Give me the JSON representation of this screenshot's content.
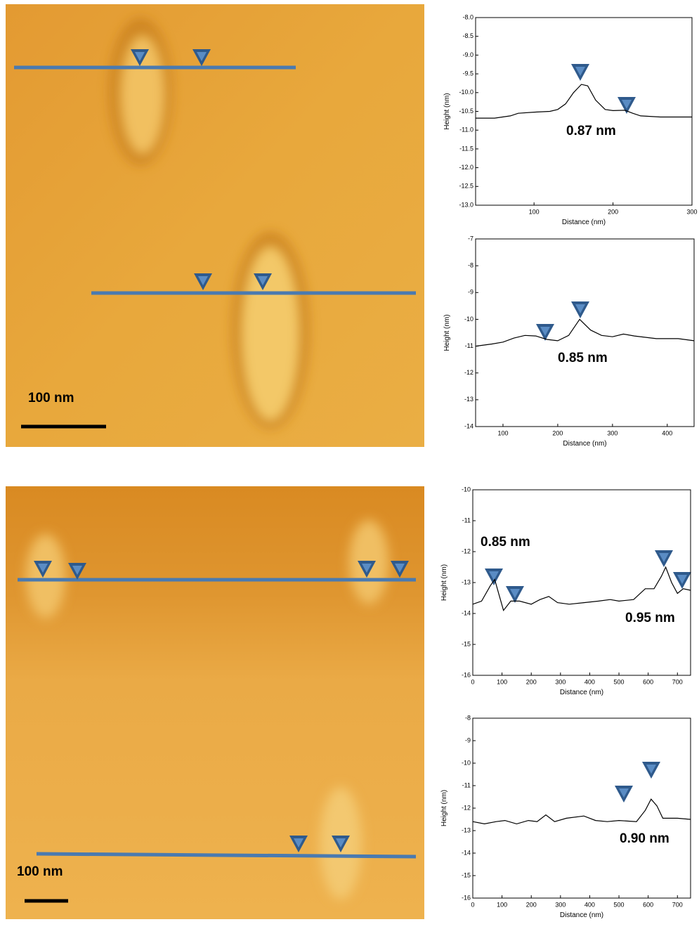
{
  "images": [
    {
      "scale_label": "100 nm"
    },
    {
      "scale_label": "100 nm"
    }
  ],
  "chart_data": [
    {
      "type": "line",
      "x_label": "Distance (nm)",
      "y_label": "Height (nm)",
      "annotations": [
        "0.87 nm"
      ],
      "xlim": [
        26,
        300
      ],
      "xticks": [
        100,
        200,
        300
      ],
      "ylim": [
        -13,
        -8
      ],
      "yticks": [
        {
          "value": -8,
          "label": "-8.0"
        },
        -8.5,
        {
          "value": -9,
          "label": "-9.0"
        },
        -9.5,
        {
          "value": -10,
          "label": "-10.0"
        },
        -10.5,
        {
          "value": -11,
          "label": "-11.0"
        },
        -11.5,
        {
          "value": -12,
          "label": "-12.0"
        },
        -12.5,
        {
          "value": -13,
          "label": "-13.0"
        }
      ],
      "series": [
        {
          "color": "#000000",
          "x": [
            26,
            50,
            70,
            80,
            100,
            120,
            130,
            140,
            150,
            160,
            168,
            178,
            190,
            200,
            215,
            225,
            235,
            260,
            300
          ],
          "values": [
            -10.68,
            -10.68,
            -10.62,
            -10.55,
            -10.52,
            -10.5,
            -10.45,
            -10.3,
            -10.0,
            -9.78,
            -9.82,
            -10.2,
            -10.45,
            -10.48,
            -10.47,
            -10.55,
            -10.62,
            -10.65,
            -10.65
          ]
        }
      ]
    },
    {
      "type": "line",
      "x_label": "Distance (nm)",
      "y_label": "Height (nm)",
      "annotations": [
        "0.85 nm"
      ],
      "xlim": [
        50,
        449
      ],
      "xticks": [
        100,
        200,
        300,
        400
      ],
      "ylim": [
        -14,
        -7
      ],
      "yticks": [
        -7,
        -8,
        -9,
        -10,
        -11,
        -12,
        -13,
        -14
      ],
      "series": [
        {
          "color": "#000000",
          "x": [
            50,
            80,
            100,
            120,
            140,
            160,
            180,
            200,
            220,
            240,
            260,
            280,
            300,
            320,
            340,
            380,
            420,
            449
          ],
          "values": [
            -11.0,
            -10.92,
            -10.85,
            -10.7,
            -10.6,
            -10.62,
            -10.75,
            -10.8,
            -10.6,
            -10.0,
            -10.4,
            -10.6,
            -10.65,
            -10.55,
            -10.62,
            -10.72,
            -10.72,
            -10.8
          ]
        }
      ]
    },
    {
      "type": "line",
      "x_label": "Distance (nm)",
      "y_label": "Height (nm)",
      "annotations": [
        "0.85 nm",
        "0.95 nm"
      ],
      "xlim": [
        0,
        745
      ],
      "xticks": [
        0,
        100,
        200,
        300,
        400,
        500,
        600,
        700
      ],
      "ylim": [
        -16,
        -10
      ],
      "yticks": [
        -10,
        -11,
        -12,
        -13,
        -14,
        -15,
        -16
      ],
      "series": [
        {
          "color": "#000000",
          "x": [
            0,
            30,
            60,
            75,
            90,
            105,
            130,
            160,
            200,
            230,
            260,
            290,
            330,
            380,
            430,
            470,
            500,
            550,
            590,
            620,
            645,
            660,
            680,
            700,
            720,
            745
          ],
          "values": [
            -13.7,
            -13.6,
            -13.1,
            -12.9,
            -13.4,
            -13.9,
            -13.6,
            -13.6,
            -13.7,
            -13.55,
            -13.45,
            -13.65,
            -13.7,
            -13.65,
            -13.6,
            -13.55,
            -13.6,
            -13.55,
            -13.2,
            -13.2,
            -12.8,
            -12.5,
            -13.0,
            -13.35,
            -13.2,
            -13.25
          ]
        }
      ]
    },
    {
      "type": "line",
      "x_label": "Distance (nm)",
      "y_label": "Height (nm)",
      "annotations": [
        "0.90 nm"
      ],
      "xlim": [
        0,
        745
      ],
      "xticks": [
        0,
        100,
        200,
        300,
        400,
        500,
        600,
        700
      ],
      "ylim": [
        -16,
        -8
      ],
      "yticks": [
        -8,
        -9,
        -10,
        -11,
        -12,
        -13,
        -14,
        -15,
        -16
      ],
      "series": [
        {
          "color": "#000000",
          "x": [
            0,
            40,
            80,
            110,
            150,
            190,
            220,
            250,
            280,
            320,
            380,
            420,
            460,
            500,
            560,
            590,
            610,
            630,
            650,
            700,
            745
          ],
          "values": [
            -12.6,
            -12.7,
            -12.6,
            -12.55,
            -12.7,
            -12.55,
            -12.6,
            -12.3,
            -12.6,
            -12.45,
            -12.35,
            -12.55,
            -12.6,
            -12.55,
            -12.6,
            -12.1,
            -11.6,
            -11.9,
            -12.45,
            -12.45,
            -12.5
          ]
        }
      ]
    }
  ]
}
